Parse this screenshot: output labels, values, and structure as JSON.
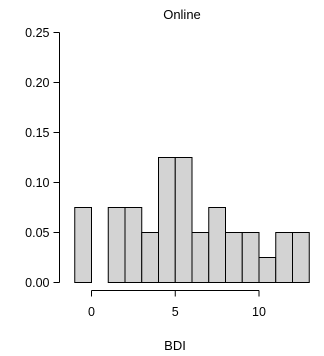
{
  "chart_data": {
    "type": "bar",
    "title": "Online",
    "xlabel": "BDI",
    "ylabel": "",
    "bin_width": 1,
    "bins": [
      {
        "start": -1,
        "end": 0,
        "value": 0.075
      },
      {
        "start": 1,
        "end": 2,
        "value": 0.075
      },
      {
        "start": 2,
        "end": 3,
        "value": 0.075
      },
      {
        "start": 3,
        "end": 4,
        "value": 0.05
      },
      {
        "start": 4,
        "end": 5,
        "value": 0.125
      },
      {
        "start": 5,
        "end": 6,
        "value": 0.125
      },
      {
        "start": 6,
        "end": 7,
        "value": 0.05
      },
      {
        "start": 7,
        "end": 8,
        "value": 0.075
      },
      {
        "start": 8,
        "end": 9,
        "value": 0.05
      },
      {
        "start": 9,
        "end": 10,
        "value": 0.05
      },
      {
        "start": 10,
        "end": 11,
        "value": 0.025
      },
      {
        "start": 11,
        "end": 12,
        "value": 0.05
      },
      {
        "start": 12,
        "end": 13,
        "value": 0.05
      }
    ],
    "xlim": [
      -1.5,
      13.5
    ],
    "ylim": [
      0,
      0.25
    ],
    "x_ticks": [
      0,
      5,
      10
    ],
    "x_tick_labels": [
      "0",
      "5",
      "10"
    ],
    "y_ticks": [
      0,
      0.05,
      0.1,
      0.15,
      0.2,
      0.25
    ],
    "y_tick_labels": [
      "0.00",
      "0.05",
      "0.10",
      "0.15",
      "0.20",
      "0.25"
    ],
    "grid": false,
    "bar_color": "#d3d3d3",
    "edge_color": "#000000"
  }
}
